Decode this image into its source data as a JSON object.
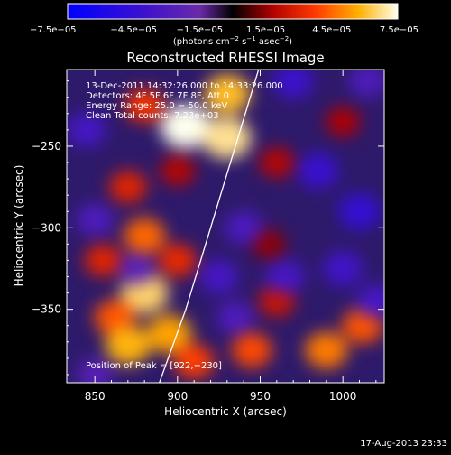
{
  "chart_data": {
    "type": "heatmap",
    "title": "Reconstructed RHESSI Image",
    "xlabel": "Heliocentric X (arcsec)",
    "ylabel": "Heliocentric Y (arcsec)",
    "xlim": [
      833,
      1025
    ],
    "ylim": [
      -395,
      -203
    ],
    "xticks": [
      850,
      900,
      950,
      1000
    ],
    "yticks": [
      -250,
      -300,
      -350
    ],
    "xtick_labels": [
      "850",
      "900",
      "950",
      "1000"
    ],
    "ytick_labels": [
      "−250",
      "−300",
      "−350"
    ],
    "colorbar": {
      "range": [
        -7.5e-05,
        7.5e-05
      ],
      "ticks": [
        "−7.5e−05",
        "−4.5e−05",
        "−1.5e−05",
        "1.5e−05",
        "4.5e−05",
        "7.5e−05"
      ],
      "unit_text": "(photons cm",
      "unit_exp1": "−2",
      "unit_mid": " s",
      "unit_exp2": "−1",
      "unit_end": " asec",
      "unit_exp3": "−2",
      "unit_close": ")"
    },
    "annotations": [
      "13‐Dec‐2011 14:32:26.000 to 14:33:26.000",
      "Detectors: 4F 5F 6F 7F 8F, Att 0",
      "Energy Range: 25.0 − 50.0 keV",
      "Clean     Total counts: 7.23e+03"
    ],
    "peak_label": "Position of Peak = [922,−230]",
    "limb_points": [
      [
        889,
        -395
      ],
      [
        905,
        -350
      ],
      [
        920,
        -300
      ],
      [
        935,
        -250
      ],
      [
        949,
        -203
      ]
    ],
    "hotspots": [
      {
        "x": 905,
        "y": -238,
        "v": 7.5e-05
      },
      {
        "x": 930,
        "y": -245,
        "v": 6.8e-05
      },
      {
        "x": 930,
        "y": -218,
        "v": 6e-05
      },
      {
        "x": 880,
        "y": -225,
        "v": 3.5e-05
      },
      {
        "x": 900,
        "y": -265,
        "v": 2e-05
      },
      {
        "x": 870,
        "y": -275,
        "v": 3e-05
      },
      {
        "x": 855,
        "y": -320,
        "v": 3e-05
      },
      {
        "x": 880,
        "y": -305,
        "v": 4.5e-05
      },
      {
        "x": 900,
        "y": -320,
        "v": 3.2e-05
      },
      {
        "x": 880,
        "y": -340,
        "v": 6.5e-05
      },
      {
        "x": 862,
        "y": -355,
        "v": 4.2e-05
      },
      {
        "x": 870,
        "y": -372,
        "v": 5.8e-05
      },
      {
        "x": 895,
        "y": -365,
        "v": 5.5e-05
      },
      {
        "x": 910,
        "y": -382,
        "v": 3.8e-05
      },
      {
        "x": 945,
        "y": -375,
        "v": 4e-05
      },
      {
        "x": 990,
        "y": -375,
        "v": 4.8e-05
      },
      {
        "x": 1012,
        "y": -360,
        "v": 4.2e-05
      },
      {
        "x": 960,
        "y": -345,
        "v": 2.5e-05
      },
      {
        "x": 960,
        "y": -260,
        "v": 2e-05
      },
      {
        "x": 1000,
        "y": -235,
        "v": 1.8e-05
      },
      {
        "x": 955,
        "y": -310,
        "v": 1.5e-05
      },
      {
        "x": 845,
        "y": -240,
        "v": -3.5e-05
      },
      {
        "x": 970,
        "y": -210,
        "v": -4e-05
      },
      {
        "x": 1015,
        "y": -210,
        "v": -3e-05
      },
      {
        "x": 985,
        "y": -265,
        "v": -4.2e-05
      },
      {
        "x": 1010,
        "y": -290,
        "v": -4.5e-05
      },
      {
        "x": 940,
        "y": -300,
        "v": -3.2e-05
      },
      {
        "x": 965,
        "y": -330,
        "v": -3.5e-05
      },
      {
        "x": 1000,
        "y": -325,
        "v": -3.8e-05
      },
      {
        "x": 925,
        "y": -330,
        "v": -3.5e-05
      },
      {
        "x": 850,
        "y": -295,
        "v": -3e-05
      },
      {
        "x": 875,
        "y": -325,
        "v": -2.5e-05
      },
      {
        "x": 1020,
        "y": -345,
        "v": -3.5e-05
      },
      {
        "x": 935,
        "y": -355,
        "v": -3e-05
      },
      {
        "x": 850,
        "y": -390,
        "v": -2.5e-05
      }
    ],
    "footer_timestamp": "17‐Aug‐2013 23:33"
  }
}
